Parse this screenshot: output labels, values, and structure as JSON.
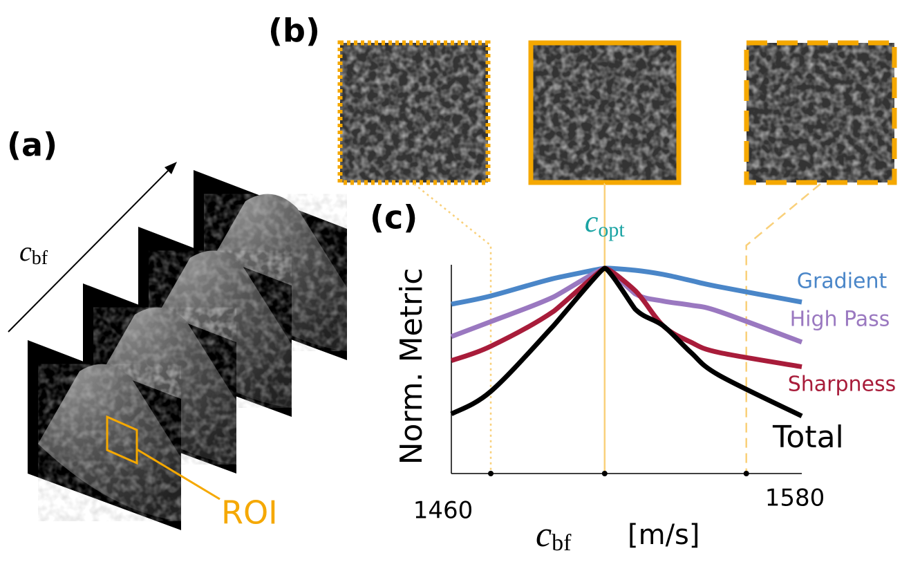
{
  "panels": {
    "a": {
      "label": "(a)",
      "axis_label": {
        "symbol": "c",
        "subscript": "bf"
      },
      "roi_label": "ROI"
    },
    "b": {
      "label": "(b)"
    },
    "c": {
      "label": "(c)"
    }
  },
  "chart_data": {
    "type": "line",
    "ylabel": "Norm. Metric",
    "xlabel": {
      "symbol": "c",
      "subscript": "bf",
      "unit": "[m/s]"
    },
    "annotation": {
      "symbol": "c",
      "subscript": "opt"
    },
    "x": [
      1460,
      1473.5,
      1495,
      1512.5,
      1523,
      1532.5,
      1542,
      1551.5,
      1580
    ],
    "series": [
      {
        "name": "Gradient",
        "color": "#4a86c8",
        "values": [
          0.825,
          0.865,
          0.95,
          1,
          0.99,
          0.97,
          0.94,
          0.91,
          0.835
        ]
      },
      {
        "name": "High Pass",
        "color": "#9a78c0",
        "values": [
          0.667,
          0.74,
          0.86,
          1,
          0.875,
          0.84,
          0.82,
          0.79,
          0.64
        ]
      },
      {
        "name": "Sharpness",
        "color": "#a81c3a",
        "values": [
          0.55,
          0.62,
          0.79,
          1,
          0.89,
          0.72,
          0.64,
          0.59,
          0.52
        ]
      },
      {
        "name": "Total",
        "color": "#000000",
        "values": [
          0.29,
          0.4,
          0.72,
          1,
          0.8,
          0.72,
          0.59,
          0.48,
          0.28
        ]
      }
    ],
    "reference_lines": [
      {
        "x": 1473.5,
        "style": "dotted"
      },
      {
        "x": 1512.5,
        "style": "solid"
      },
      {
        "x": 1561,
        "style": "dashed"
      }
    ],
    "xlim": [
      1460,
      1580
    ],
    "ylim": [
      0,
      1
    ],
    "xticks": [
      1460,
      1580
    ],
    "grid": false
  }
}
